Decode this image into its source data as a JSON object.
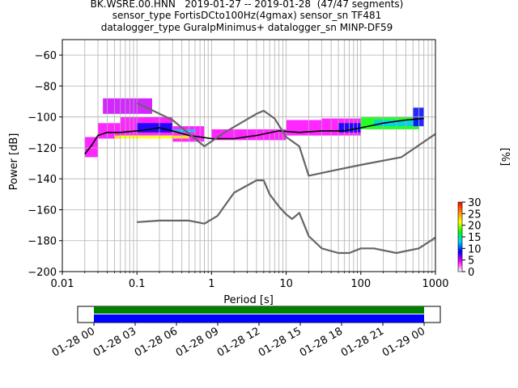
{
  "chart_data": [
    {
      "type": "heatmap",
      "title_lines": [
        "BK.WSRE.00.HNN   2019-01-27 -- 2019-01-28  (47/47 segments)",
        "sensor_type FortisDCto100Hz(4gmax) sensor_sn TF481",
        "datalogger_type GuralpMinimus+ datalogger_sn MINP-DF59"
      ],
      "xlabel": "Period [s]",
      "ylabel": "Power [dB]",
      "xscale": "log",
      "xlim": [
        0.01,
        1000
      ],
      "ylim": [
        -200,
        -50
      ],
      "x_ticks": [
        {
          "value": 0.01,
          "label": "0.01"
        },
        {
          "value": 0.1,
          "label": "0.1"
        },
        {
          "value": 1,
          "label": "1"
        },
        {
          "value": 10,
          "label": "10"
        },
        {
          "value": 100,
          "label": "100"
        },
        {
          "value": 1000,
          "label": "1000"
        }
      ],
      "y_ticks": [
        {
          "value": -60,
          "label": "−60"
        },
        {
          "value": -80,
          "label": "−80"
        },
        {
          "value": -100,
          "label": "−100"
        },
        {
          "value": -120,
          "label": "−120"
        },
        {
          "value": -140,
          "label": "−140"
        },
        {
          "value": -160,
          "label": "−160"
        },
        {
          "value": -180,
          "label": "−180"
        },
        {
          "value": -200,
          "label": "−200"
        }
      ],
      "grid": true,
      "colorbar": {
        "label": "[%]",
        "range": [
          0,
          30
        ],
        "ticks": [
          "0",
          "5",
          "10",
          "15",
          "20",
          "25",
          "30"
        ],
        "colors": [
          "#ffffff",
          "#ff00ff",
          "#0000ff",
          "#00ccff",
          "#00ff00",
          "#ffff00",
          "#ff8800",
          "#ff0000"
        ]
      },
      "series": [
        {
          "name": "",
          "role": "mean",
          "color": "#000000",
          "x": [
            0.02,
            0.025,
            0.03,
            0.04,
            0.06,
            0.1,
            0.15,
            0.2,
            0.3,
            0.5,
            1,
            2,
            4,
            8,
            15,
            30,
            60,
            100,
            200,
            400,
            700
          ],
          "y": [
            -124,
            -118,
            -112,
            -110,
            -110,
            -109,
            -108,
            -107,
            -109,
            -112,
            -114,
            -114,
            -112,
            -109,
            -110,
            -109,
            -109,
            -107,
            -104,
            -102,
            -101
          ]
        },
        {
          "name": "",
          "role": "model-upper",
          "color": "#666666",
          "x": [
            0.1,
            0.3,
            0.8,
            1.5,
            4,
            5,
            7,
            10,
            15,
            20,
            50,
            100,
            350,
            1000
          ],
          "y": [
            -91,
            -102,
            -119,
            -110,
            -98,
            -96,
            -101,
            -113,
            -119,
            -138,
            -134,
            -131,
            -126,
            -111
          ]
        },
        {
          "name": "",
          "role": "model-lower",
          "color": "#666666",
          "x": [
            0.1,
            0.2,
            0.5,
            0.8,
            1.2,
            2,
            4,
            5,
            6,
            8,
            10,
            12,
            15,
            20,
            30,
            50,
            70,
            100,
            150,
            300,
            600,
            1000
          ],
          "y": [
            -168,
            -167,
            -167,
            -169,
            -164,
            -149,
            -141,
            -141,
            -150,
            -158,
            -163,
            -166,
            -162,
            -177,
            -185,
            -188,
            -188,
            -185,
            -185,
            -188,
            -185,
            -178
          ]
        }
      ],
      "heatmap_blocks": [
        {
          "x": [
            0.02,
            0.03
          ],
          "y": [
            -126,
            -113
          ],
          "color": "#ff00ff"
        },
        {
          "x": [
            0.03,
            0.06
          ],
          "y": [
            -114,
            -104
          ],
          "color": "#ff00ff"
        },
        {
          "x": [
            0.035,
            0.16
          ],
          "y": [
            -98,
            -88
          ],
          "color": "#cc00ff"
        },
        {
          "x": [
            0.06,
            0.3
          ],
          "y": [
            -112,
            -100
          ],
          "color": "#ff00ff"
        },
        {
          "x": [
            0.1,
            0.3
          ],
          "y": [
            -110,
            -104
          ],
          "color": "#0000ff"
        },
        {
          "x": [
            0.3,
            0.8
          ],
          "y": [
            -116,
            -106
          ],
          "color": "#ff00ff"
        },
        {
          "x": [
            0.3,
            0.6
          ],
          "y": [
            -110,
            -108
          ],
          "color": "#00ccff"
        },
        {
          "x": [
            0.05,
            0.5
          ],
          "y": [
            -114,
            -112
          ],
          "color": "#ffff00"
        },
        {
          "x": [
            1,
            10
          ],
          "y": [
            -115,
            -108
          ],
          "color": "#ff00ff"
        },
        {
          "x": [
            10,
            30
          ],
          "y": [
            -112,
            -102
          ],
          "color": "#ff00ff"
        },
        {
          "x": [
            30,
            100
          ],
          "y": [
            -112,
            -101
          ],
          "color": "#ff00ff"
        },
        {
          "x": [
            50,
            100
          ],
          "y": [
            -110,
            -104
          ],
          "color": "#0000ff"
        },
        {
          "x": [
            100,
            600
          ],
          "y": [
            -108,
            -100
          ],
          "color": "#00ff00"
        },
        {
          "x": [
            150,
            600
          ],
          "y": [
            -106,
            -102
          ],
          "color": "#00ccff"
        },
        {
          "x": [
            500,
            700
          ],
          "y": [
            -106,
            -94
          ],
          "color": "#0000ff"
        }
      ]
    },
    {
      "type": "timeline",
      "tick_labels": [
        "01-28 00",
        "01-28 03",
        "01-28 06",
        "01-28 09",
        "01-28 12",
        "01-28 15",
        "01-28 18",
        "01-28 21",
        "01-29 00"
      ],
      "bars": [
        {
          "color": "#008000",
          "coverage": 1.0
        },
        {
          "color": "#0000ff",
          "coverage": 1.0
        }
      ]
    }
  ]
}
